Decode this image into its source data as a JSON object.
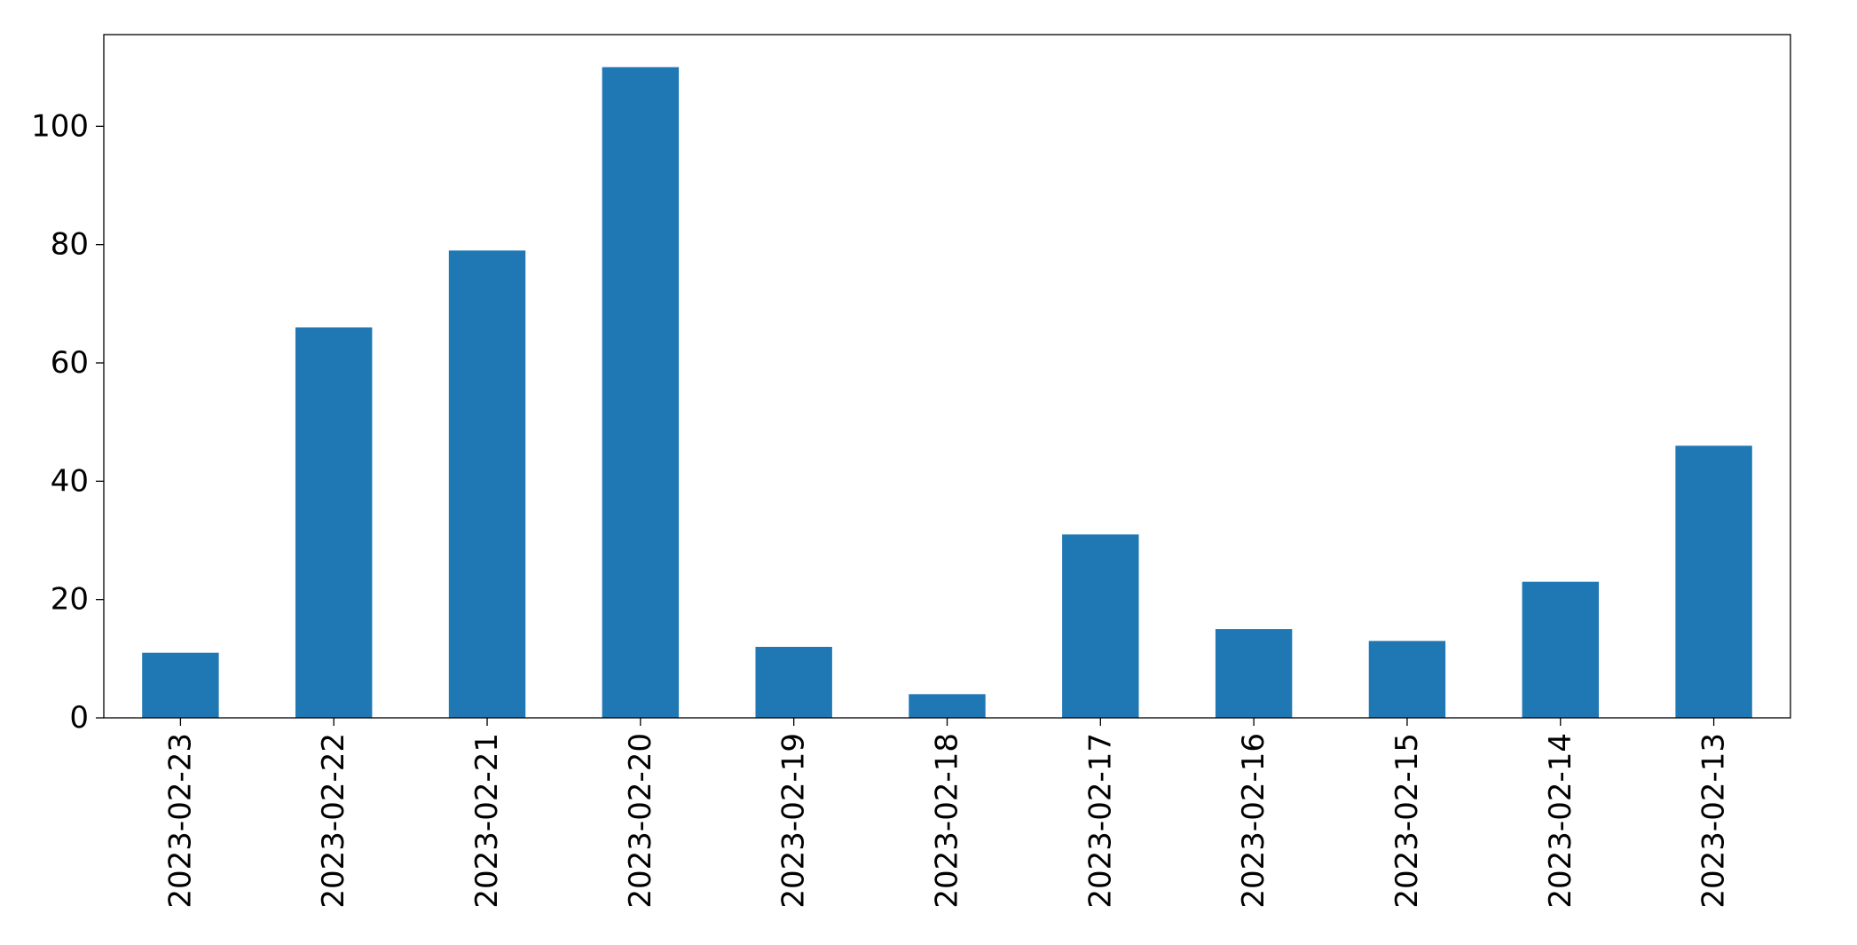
{
  "chart_data": {
    "type": "bar",
    "title": "",
    "xlabel": "",
    "ylabel": "",
    "categories": [
      "2023-02-23",
      "2023-02-22",
      "2023-02-21",
      "2023-02-20",
      "2023-02-19",
      "2023-02-18",
      "2023-02-17",
      "2023-02-16",
      "2023-02-15",
      "2023-02-14",
      "2023-02-13"
    ],
    "values": [
      11,
      66,
      79,
      110,
      12,
      4,
      31,
      15,
      13,
      23,
      46
    ],
    "ylim": [
      0,
      115.5
    ],
    "yticks": [
      0,
      20,
      40,
      60,
      80,
      100
    ],
    "ytick_labels": [
      "0",
      "20",
      "40",
      "60",
      "80",
      "100"
    ],
    "grid": false,
    "legend": "none",
    "bar_color": "#1f77b4"
  }
}
